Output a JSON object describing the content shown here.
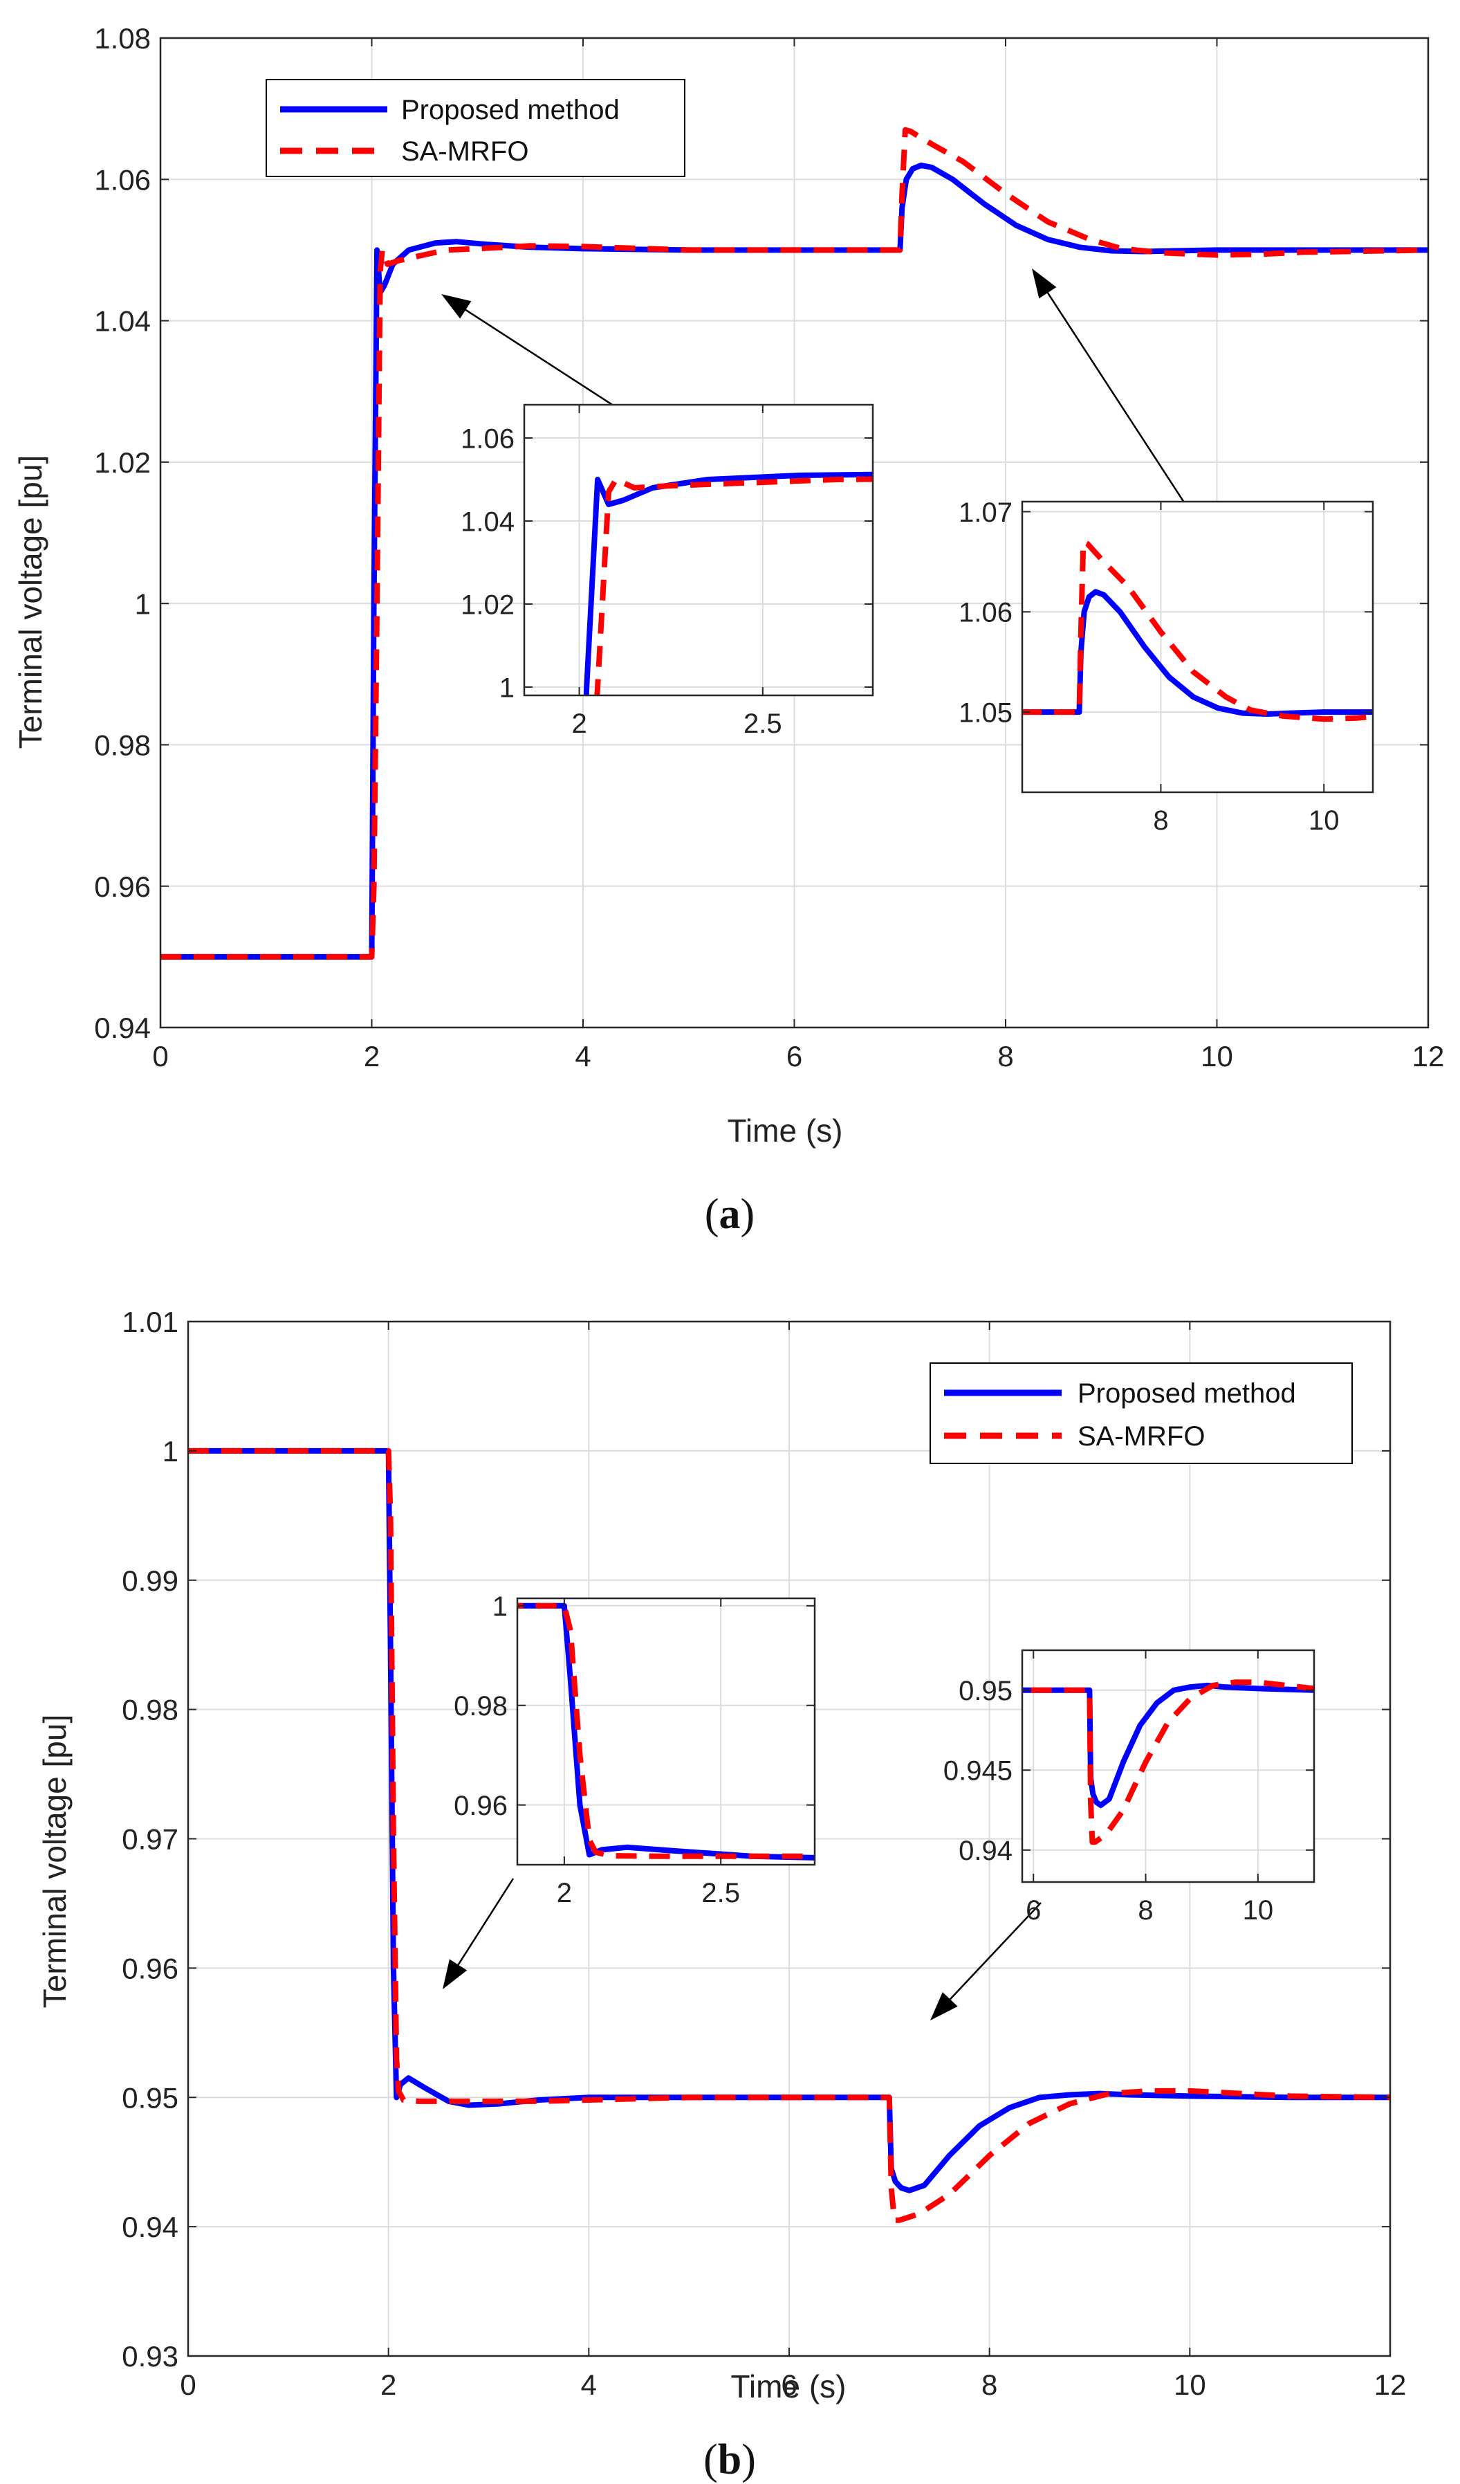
{
  "panels": [
    {
      "caption_letter": "a",
      "xlabel": "Time (s)",
      "ylabel": "Terminal voltage [pu]",
      "legend": [
        "Proposed method",
        "SA-MRFO"
      ]
    },
    {
      "caption_letter": "b",
      "xlabel": "Time (s)",
      "ylabel": "Terminal voltage [pu]",
      "legend": [
        "Proposed method",
        "SA-MRFO"
      ]
    }
  ],
  "colors": {
    "proposed": "#0000ff",
    "sa_mrfo": "#ff0000",
    "grid": "#dcdcdc",
    "arrow": "#000000"
  },
  "chart_data": [
    {
      "type": "line",
      "title": "",
      "xlabel": "Time (s)",
      "ylabel": "Terminal voltage [pu]",
      "xlim": [
        0,
        12
      ],
      "ylim": [
        0.94,
        1.08
      ],
      "xticks": [
        0,
        2,
        4,
        6,
        8,
        10,
        12
      ],
      "xtick_labels": [
        "0",
        "2",
        "4",
        "6",
        "8",
        "10",
        "12"
      ],
      "yticks": [
        0.94,
        0.96,
        0.98,
        1.0,
        1.02,
        1.04,
        1.06,
        1.08
      ],
      "ytick_labels": [
        "0.94",
        "0.96",
        "0.98",
        "1",
        "1.02",
        "1.04",
        "1.06",
        "1.08"
      ],
      "grid": true,
      "legend_position": "top-left",
      "series": [
        {
          "name": "Proposed method",
          "style": "solid",
          "x": [
            0,
            2.0,
            2.02,
            2.05,
            2.08,
            2.12,
            2.2,
            2.35,
            2.6,
            2.8,
            3.1,
            3.5,
            4,
            5,
            7.0,
            7.02,
            7.06,
            7.12,
            7.2,
            7.3,
            7.5,
            7.8,
            8.1,
            8.4,
            8.7,
            9.0,
            9.3,
            9.6,
            10,
            11,
            12
          ],
          "y": [
            0.95,
            0.95,
            1.0,
            1.05,
            1.044,
            1.045,
            1.048,
            1.05,
            1.051,
            1.0512,
            1.0508,
            1.0504,
            1.0502,
            1.05,
            1.05,
            1.056,
            1.06,
            1.0615,
            1.062,
            1.0617,
            1.06,
            1.0565,
            1.0535,
            1.0515,
            1.0504,
            1.0499,
            1.0498,
            1.0499,
            1.05,
            1.05,
            1.05
          ]
        },
        {
          "name": "SA-MRFO",
          "style": "dashed",
          "x": [
            0,
            2.0,
            2.02,
            2.05,
            2.08,
            2.1,
            2.15,
            2.25,
            2.4,
            2.7,
            3.0,
            3.5,
            4,
            5,
            7.0,
            7.02,
            7.05,
            7.1,
            7.3,
            7.6,
            8.0,
            8.4,
            8.8,
            9.1,
            9.5,
            10,
            10.4,
            10.8,
            11.2,
            12
          ],
          "y": [
            0.95,
            0.95,
            0.96,
            1.0,
            1.047,
            1.05,
            1.048,
            1.0485,
            1.049,
            1.05,
            1.0502,
            1.0506,
            1.0505,
            1.05,
            1.05,
            1.058,
            1.067,
            1.0668,
            1.065,
            1.0625,
            1.058,
            1.054,
            1.0515,
            1.0502,
            1.0496,
            1.0493,
            1.0494,
            1.0497,
            1.0498,
            1.05
          ]
        }
      ],
      "insets": [
        {
          "xlim": [
            1.85,
            2.8
          ],
          "ylim": [
            0.998,
            1.068
          ],
          "xticks": [
            2,
            2.5
          ],
          "xtick_labels": [
            "2",
            "2.5"
          ],
          "yticks": [
            1.0,
            1.02,
            1.04,
            1.06
          ],
          "ytick_labels": [
            "1",
            "1.02",
            "1.04",
            "1.06"
          ]
        },
        {
          "xlim": [
            6.3,
            10.6
          ],
          "ylim": [
            1.042,
            1.071
          ],
          "xticks": [
            8,
            10
          ],
          "xtick_labels": [
            "8",
            "10"
          ],
          "yticks": [
            1.05,
            1.06,
            1.07
          ],
          "ytick_labels": [
            "1.05",
            "1.06",
            "1.07"
          ]
        }
      ]
    },
    {
      "type": "line",
      "title": "",
      "xlabel": "Time (s)",
      "ylabel": "Terminal voltage [pu]",
      "xlim": [
        0,
        12
      ],
      "ylim": [
        0.93,
        1.01
      ],
      "xticks": [
        0,
        2,
        4,
        6,
        8,
        10,
        12
      ],
      "xtick_labels": [
        "0",
        "2",
        "4",
        "6",
        "8",
        "10",
        "12"
      ],
      "yticks": [
        0.93,
        0.94,
        0.95,
        0.96,
        0.97,
        0.98,
        0.99,
        1.0,
        1.01
      ],
      "ytick_labels": [
        "0.93",
        "0.94",
        "0.95",
        "0.96",
        "0.97",
        "0.98",
        "0.99",
        "1",
        "1.01"
      ],
      "grid": true,
      "legend_position": "top-right",
      "series": [
        {
          "name": "Proposed method",
          "style": "solid",
          "x": [
            0,
            2.0,
            2.02,
            2.05,
            2.08,
            2.12,
            2.2,
            2.35,
            2.6,
            2.8,
            3.1,
            3.5,
            4,
            5,
            7.0,
            7.02,
            7.06,
            7.12,
            7.2,
            7.35,
            7.6,
            7.9,
            8.2,
            8.5,
            8.8,
            9.1,
            9.4,
            10,
            11,
            12
          ],
          "y": [
            1.0,
            1.0,
            0.985,
            0.96,
            0.95,
            0.951,
            0.9515,
            0.9508,
            0.9497,
            0.9494,
            0.9495,
            0.9498,
            0.95,
            0.95,
            0.95,
            0.9445,
            0.9435,
            0.943,
            0.9428,
            0.9432,
            0.9455,
            0.9478,
            0.9492,
            0.95,
            0.9502,
            0.9503,
            0.9502,
            0.9501,
            0.95,
            0.95
          ]
        },
        {
          "name": "SA-MRFO",
          "style": "dashed",
          "x": [
            0,
            2.0,
            2.02,
            2.05,
            2.08,
            2.1,
            2.15,
            2.3,
            2.6,
            3.0,
            3.5,
            4,
            5,
            7.0,
            7.02,
            7.05,
            7.1,
            7.3,
            7.6,
            8.0,
            8.4,
            8.8,
            9.2,
            9.6,
            10,
            10.5,
            11,
            12
          ],
          "y": [
            1.0,
            1.0,
            0.995,
            0.97,
            0.953,
            0.9505,
            0.9498,
            0.9497,
            0.9497,
            0.9497,
            0.9497,
            0.9498,
            0.95,
            0.95,
            0.943,
            0.9405,
            0.9405,
            0.941,
            0.9425,
            0.9455,
            0.948,
            0.9495,
            0.9503,
            0.9505,
            0.9505,
            0.9503,
            0.9501,
            0.95
          ]
        }
      ],
      "insets": [
        {
          "xlim": [
            1.85,
            2.8
          ],
          "ylim": [
            0.948,
            1.0015
          ],
          "xticks": [
            2,
            2.5
          ],
          "xtick_labels": [
            "2",
            "2.5"
          ],
          "yticks": [
            0.96,
            0.98,
            1.0
          ],
          "ytick_labels": [
            "0.96",
            "0.98",
            "1"
          ]
        },
        {
          "xlim": [
            5.8,
            11
          ],
          "ylim": [
            0.938,
            0.9525
          ],
          "xticks": [
            6,
            8,
            10
          ],
          "xtick_labels": [
            "6",
            "8",
            "10"
          ],
          "yticks": [
            0.94,
            0.945,
            0.95
          ],
          "ytick_labels": [
            "0.94",
            "0.945",
            "0.95"
          ]
        }
      ]
    }
  ]
}
